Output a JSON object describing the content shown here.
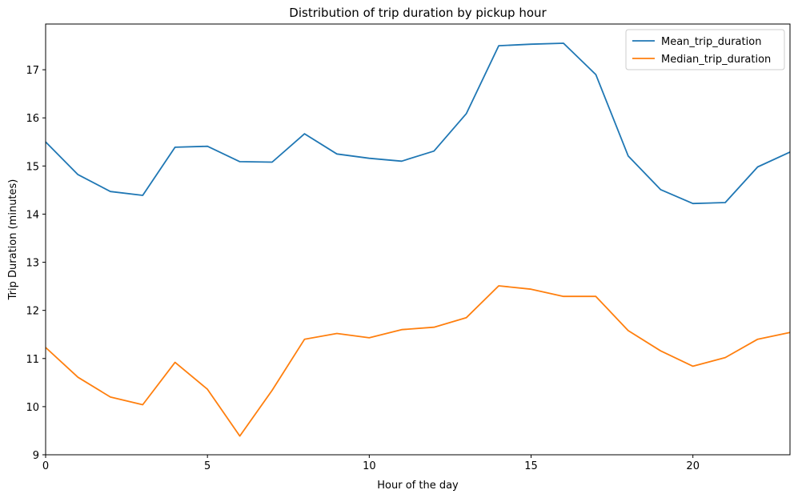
{
  "chart_data": {
    "type": "line",
    "title": "Distribution of trip duration by pickup hour",
    "xlabel": "Hour of the day",
    "ylabel": "Trip Duration (minutes)",
    "xlim": [
      0,
      23
    ],
    "ylim": [
      9,
      17.95
    ],
    "xticks": [
      0,
      5,
      10,
      15,
      20
    ],
    "yticks": [
      9,
      10,
      11,
      12,
      13,
      14,
      15,
      16,
      17
    ],
    "grid": false,
    "legend_position": "top-right",
    "x": [
      0,
      1,
      2,
      3,
      4,
      5,
      6,
      7,
      8,
      9,
      10,
      11,
      12,
      13,
      14,
      15,
      16,
      17,
      18,
      19,
      20,
      21,
      22,
      23
    ],
    "series": [
      {
        "name": "Mean_trip_duration",
        "color": "#1f77b4",
        "values": [
          15.5,
          14.82,
          14.47,
          14.39,
          15.39,
          15.41,
          15.09,
          15.08,
          15.67,
          15.25,
          15.16,
          15.1,
          15.31,
          16.09,
          17.5,
          17.53,
          17.55,
          16.9,
          15.21,
          14.51,
          14.22,
          14.24,
          14.98,
          15.29
        ]
      },
      {
        "name": "Median_trip_duration",
        "color": "#ff7f0e",
        "values": [
          11.23,
          10.61,
          10.2,
          10.04,
          10.92,
          10.36,
          9.39,
          10.34,
          11.4,
          11.52,
          11.43,
          11.6,
          11.65,
          11.85,
          12.51,
          12.44,
          12.29,
          12.29,
          11.58,
          11.16,
          10.84,
          11.02,
          11.4,
          11.54
        ]
      }
    ]
  }
}
